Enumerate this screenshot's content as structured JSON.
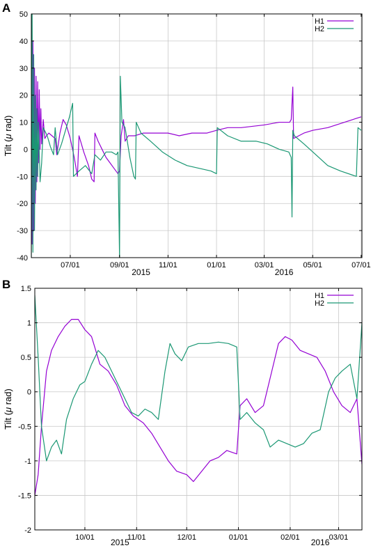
{
  "chart_data": [
    {
      "panel": "A",
      "type": "line",
      "ylabel_prefix": "Tilt (",
      "ylabel_mu": "μ",
      "ylabel_suffix": " rad)",
      "ylim": [
        -40,
        50
      ],
      "yticks": [
        -40,
        -30,
        -20,
        -10,
        0,
        10,
        20,
        30,
        40,
        50
      ],
      "xlim": [
        "2015-05-13",
        "2016-07-02"
      ],
      "xticks": [
        {
          "date": "2015-07-01",
          "label": "07/01"
        },
        {
          "date": "2015-09-01",
          "label": "09/01"
        },
        {
          "date": "2015-11-01",
          "label": "11/01"
        },
        {
          "date": "2016-01-01",
          "label": "01/01"
        },
        {
          "date": "2016-03-01",
          "label": "03/01"
        },
        {
          "date": "2016-05-01",
          "label": "05/01"
        },
        {
          "date": "2016-07-01",
          "label": "07/01"
        }
      ],
      "year_labels": [
        {
          "date": "2015-09-28",
          "label": "2015"
        },
        {
          "date": "2016-03-26",
          "label": "2016"
        }
      ],
      "grid": true,
      "legend_position": "top-right",
      "series": [
        {
          "name": "H1",
          "color": "#9400d3",
          "points": [
            [
              "2015-05-13",
              50
            ],
            [
              "2015-05-14",
              -35
            ],
            [
              "2015-05-15",
              40
            ],
            [
              "2015-05-16",
              -30
            ],
            [
              "2015-05-17",
              30
            ],
            [
              "2015-05-18",
              -20
            ],
            [
              "2015-05-19",
              27
            ],
            [
              "2015-05-20",
              -12
            ],
            [
              "2015-05-21",
              25
            ],
            [
              "2015-05-22",
              -5
            ],
            [
              "2015-05-23",
              22
            ],
            [
              "2015-05-24",
              0
            ],
            [
              "2015-05-25",
              15
            ],
            [
              "2015-05-26",
              2
            ],
            [
              "2015-05-28",
              11
            ],
            [
              "2015-05-30",
              4
            ],
            [
              "2015-06-01",
              5
            ],
            [
              "2015-06-04",
              6
            ],
            [
              "2015-06-08",
              5
            ],
            [
              "2015-06-12",
              4
            ],
            [
              "2015-06-14",
              -2
            ],
            [
              "2015-06-18",
              6
            ],
            [
              "2015-06-22",
              11
            ],
            [
              "2015-06-26",
              9
            ],
            [
              "2015-07-01",
              4
            ],
            [
              "2015-07-06",
              -3
            ],
            [
              "2015-07-10",
              -10
            ],
            [
              "2015-07-12",
              5
            ],
            [
              "2015-07-18",
              -1
            ],
            [
              "2015-07-24",
              -6
            ],
            [
              "2015-07-28",
              -11
            ],
            [
              "2015-07-31",
              -12
            ],
            [
              "2015-08-01",
              6
            ],
            [
              "2015-08-05",
              3
            ],
            [
              "2015-08-10",
              0
            ],
            [
              "2015-08-15",
              -3
            ],
            [
              "2015-08-20",
              -5
            ],
            [
              "2015-08-25",
              -7
            ],
            [
              "2015-08-30",
              -9
            ],
            [
              "2015-09-01",
              -8
            ],
            [
              "2015-09-03",
              5
            ],
            [
              "2015-09-06",
              11
            ],
            [
              "2015-09-08",
              3
            ],
            [
              "2015-09-12",
              5
            ],
            [
              "2015-09-20",
              5
            ],
            [
              "2015-10-01",
              6
            ],
            [
              "2015-10-15",
              6
            ],
            [
              "2015-11-01",
              6
            ],
            [
              "2015-11-15",
              5
            ],
            [
              "2015-12-01",
              6
            ],
            [
              "2015-12-20",
              6
            ],
            [
              "2016-01-01",
              7
            ],
            [
              "2016-01-15",
              8
            ],
            [
              "2016-02-01",
              8
            ],
            [
              "2016-03-01",
              9
            ],
            [
              "2016-03-20",
              10
            ],
            [
              "2016-04-02",
              10
            ],
            [
              "2016-04-04",
              11
            ],
            [
              "2016-04-06",
              23
            ],
            [
              "2016-04-07",
              4
            ],
            [
              "2016-04-20",
              6
            ],
            [
              "2016-05-01",
              7
            ],
            [
              "2016-05-20",
              8
            ],
            [
              "2016-06-10",
              10
            ],
            [
              "2016-07-01",
              12
            ]
          ]
        },
        {
          "name": "H2",
          "color": "#1a9773",
          "points": [
            [
              "2015-05-13",
              -40
            ],
            [
              "2015-05-14",
              50
            ],
            [
              "2015-05-15",
              -38
            ],
            [
              "2015-05-16",
              35
            ],
            [
              "2015-05-17",
              -30
            ],
            [
              "2015-05-18",
              20
            ],
            [
              "2015-05-19",
              -15
            ],
            [
              "2015-05-20",
              15
            ],
            [
              "2015-05-21",
              -10
            ],
            [
              "2015-05-22",
              10
            ],
            [
              "2015-05-24",
              -12
            ],
            [
              "2015-05-26",
              -5
            ],
            [
              "2015-05-28",
              8
            ],
            [
              "2015-06-02",
              5
            ],
            [
              "2015-06-06",
              1
            ],
            [
              "2015-06-10",
              -2
            ],
            [
              "2015-06-12",
              8
            ],
            [
              "2015-06-15",
              -2
            ],
            [
              "2015-06-20",
              2
            ],
            [
              "2015-06-25",
              7
            ],
            [
              "2015-06-30",
              12
            ],
            [
              "2015-07-04",
              17
            ],
            [
              "2015-07-05",
              -10
            ],
            [
              "2015-07-12",
              -8
            ],
            [
              "2015-07-20",
              -6
            ],
            [
              "2015-07-28",
              -9
            ],
            [
              "2015-08-01",
              -2
            ],
            [
              "2015-08-08",
              -4
            ],
            [
              "2015-08-15",
              -1
            ],
            [
              "2015-08-22",
              -1
            ],
            [
              "2015-08-28",
              -2
            ],
            [
              "2015-08-30",
              -1
            ],
            [
              "2015-09-01",
              -40
            ],
            [
              "2015-09-02",
              27
            ],
            [
              "2015-09-04",
              10
            ],
            [
              "2015-09-08",
              8
            ],
            [
              "2015-09-14",
              -3
            ],
            [
              "2015-09-19",
              -10
            ],
            [
              "2015-09-21",
              -11
            ],
            [
              "2015-09-22",
              10
            ],
            [
              "2015-09-28",
              6
            ],
            [
              "2015-10-10",
              3
            ],
            [
              "2015-10-25",
              -1
            ],
            [
              "2015-11-10",
              -4
            ],
            [
              "2015-11-25",
              -6
            ],
            [
              "2015-12-10",
              -7
            ],
            [
              "2015-12-25",
              -8
            ],
            [
              "2016-01-01",
              -9
            ],
            [
              "2016-01-02",
              8
            ],
            [
              "2016-01-15",
              5
            ],
            [
              "2016-02-01",
              3
            ],
            [
              "2016-02-20",
              3
            ],
            [
              "2016-03-05",
              2
            ],
            [
              "2016-03-20",
              0
            ],
            [
              "2016-04-01",
              -1
            ],
            [
              "2016-04-04",
              -3
            ],
            [
              "2016-04-05",
              -25
            ],
            [
              "2016-04-06",
              7
            ],
            [
              "2016-04-08",
              5
            ],
            [
              "2016-04-20",
              2
            ],
            [
              "2016-05-05",
              -2
            ],
            [
              "2016-05-20",
              -6
            ],
            [
              "2016-06-05",
              -8
            ],
            [
              "2016-06-25",
              -10
            ],
            [
              "2016-06-27",
              8
            ],
            [
              "2016-07-01",
              7
            ]
          ]
        }
      ]
    },
    {
      "panel": "B",
      "type": "line",
      "ylabel_prefix": "Tilt (",
      "ylabel_mu": "μ",
      "ylabel_suffix": " rad)",
      "ylim": [
        -2,
        1.5
      ],
      "yticks": [
        -2,
        -1.5,
        -1,
        -0.5,
        0,
        0.5,
        1,
        1.5
      ],
      "xlim": [
        "2015-09-01",
        "2016-03-15"
      ],
      "xticks": [
        {
          "date": "2015-10-01",
          "label": "10/01"
        },
        {
          "date": "2015-11-01",
          "label": "11/01"
        },
        {
          "date": "2015-12-01",
          "label": "12/01"
        },
        {
          "date": "2016-01-01",
          "label": "01/01"
        },
        {
          "date": "2016-02-01",
          "label": "02/01"
        },
        {
          "date": "2016-03-01",
          "label": "03/01"
        }
      ],
      "year_labels": [
        {
          "date": "2015-10-22",
          "label": "2015"
        },
        {
          "date": "2016-02-19",
          "label": "2016"
        }
      ],
      "grid": true,
      "legend_position": "top-right",
      "series": [
        {
          "name": "H1",
          "color": "#9400d3",
          "points": [
            [
              "2015-09-01",
              -1.5
            ],
            [
              "2015-09-03",
              -1.2
            ],
            [
              "2015-09-05",
              -0.5
            ],
            [
              "2015-09-08",
              0.3
            ],
            [
              "2015-09-11",
              0.6
            ],
            [
              "2015-09-15",
              0.8
            ],
            [
              "2015-09-19",
              0.95
            ],
            [
              "2015-09-23",
              1.05
            ],
            [
              "2015-09-27",
              1.05
            ],
            [
              "2015-10-01",
              0.9
            ],
            [
              "2015-10-05",
              0.8
            ],
            [
              "2015-10-10",
              0.4
            ],
            [
              "2015-10-15",
              0.3
            ],
            [
              "2015-10-20",
              0.1
            ],
            [
              "2015-10-25",
              -0.2
            ],
            [
              "2015-10-30",
              -0.35
            ],
            [
              "2015-11-05",
              -0.45
            ],
            [
              "2015-11-10",
              -0.6
            ],
            [
              "2015-11-15",
              -0.8
            ],
            [
              "2015-11-20",
              -1.0
            ],
            [
              "2015-11-25",
              -1.15
            ],
            [
              "2015-12-01",
              -1.2
            ],
            [
              "2015-12-05",
              -1.3
            ],
            [
              "2015-12-10",
              -1.15
            ],
            [
              "2015-12-15",
              -1.0
            ],
            [
              "2015-12-20",
              -0.95
            ],
            [
              "2015-12-25",
              -0.85
            ],
            [
              "2015-12-31",
              -0.9
            ],
            [
              "2016-01-02",
              -0.2
            ],
            [
              "2016-01-06",
              -0.1
            ],
            [
              "2016-01-11",
              -0.3
            ],
            [
              "2016-01-16",
              -0.2
            ],
            [
              "2016-01-21",
              0.3
            ],
            [
              "2016-01-25",
              0.7
            ],
            [
              "2016-01-29",
              0.8
            ],
            [
              "2016-02-02",
              0.75
            ],
            [
              "2016-02-07",
              0.6
            ],
            [
              "2016-02-12",
              0.55
            ],
            [
              "2016-02-17",
              0.5
            ],
            [
              "2016-02-22",
              0.3
            ],
            [
              "2016-02-27",
              0.0
            ],
            [
              "2016-03-03",
              -0.2
            ],
            [
              "2016-03-08",
              -0.3
            ],
            [
              "2016-03-12",
              -0.1
            ],
            [
              "2016-03-15",
              -1.05
            ]
          ]
        },
        {
          "name": "H2",
          "color": "#1a9773",
          "points": [
            [
              "2015-09-01",
              1.4
            ],
            [
              "2015-09-03",
              0.5
            ],
            [
              "2015-09-05",
              -0.5
            ],
            [
              "2015-09-08",
              -1.0
            ],
            [
              "2015-09-11",
              -0.8
            ],
            [
              "2015-09-14",
              -0.7
            ],
            [
              "2015-09-17",
              -0.9
            ],
            [
              "2015-09-20",
              -0.4
            ],
            [
              "2015-09-24",
              -0.1
            ],
            [
              "2015-09-28",
              0.1
            ],
            [
              "2015-10-01",
              0.15
            ],
            [
              "2015-10-05",
              0.4
            ],
            [
              "2015-10-09",
              0.6
            ],
            [
              "2015-10-13",
              0.5
            ],
            [
              "2015-10-17",
              0.3
            ],
            [
              "2015-10-21",
              0.1
            ],
            [
              "2015-10-25",
              -0.1
            ],
            [
              "2015-10-29",
              -0.3
            ],
            [
              "2015-11-02",
              -0.35
            ],
            [
              "2015-11-06",
              -0.25
            ],
            [
              "2015-11-10",
              -0.3
            ],
            [
              "2015-11-14",
              -0.4
            ],
            [
              "2015-11-18",
              0.3
            ],
            [
              "2015-11-21",
              0.7
            ],
            [
              "2015-11-24",
              0.55
            ],
            [
              "2015-11-28",
              0.45
            ],
            [
              "2015-12-02",
              0.65
            ],
            [
              "2015-12-08",
              0.7
            ],
            [
              "2015-12-14",
              0.7
            ],
            [
              "2015-12-20",
              0.72
            ],
            [
              "2015-12-26",
              0.7
            ],
            [
              "2015-12-31",
              0.65
            ],
            [
              "2016-01-02",
              -0.4
            ],
            [
              "2016-01-06",
              -0.3
            ],
            [
              "2016-01-11",
              -0.45
            ],
            [
              "2016-01-16",
              -0.55
            ],
            [
              "2016-01-20",
              -0.8
            ],
            [
              "2016-01-25",
              -0.7
            ],
            [
              "2016-01-30",
              -0.75
            ],
            [
              "2016-02-04",
              -0.8
            ],
            [
              "2016-02-09",
              -0.75
            ],
            [
              "2016-02-14",
              -0.6
            ],
            [
              "2016-02-19",
              -0.55
            ],
            [
              "2016-02-24",
              0.0
            ],
            [
              "2016-02-28",
              0.2
            ],
            [
              "2016-03-03",
              0.3
            ],
            [
              "2016-03-08",
              0.4
            ],
            [
              "2016-03-12",
              -0.1
            ],
            [
              "2016-03-15",
              1.0
            ]
          ]
        }
      ]
    }
  ],
  "panels": [
    {
      "letter": "A"
    },
    {
      "letter": "B"
    }
  ]
}
